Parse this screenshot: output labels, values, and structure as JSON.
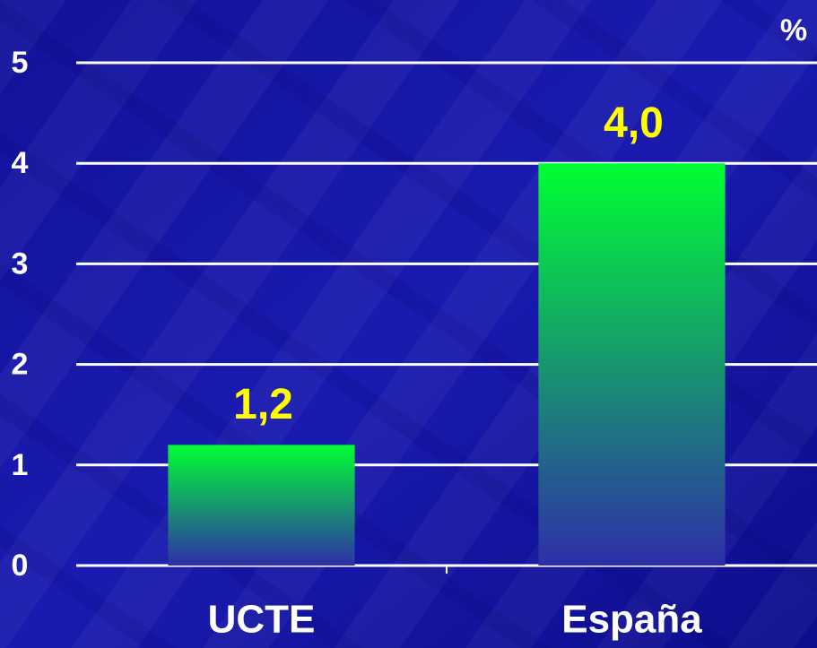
{
  "chart_data": {
    "type": "bar",
    "unit": "%",
    "categories": [
      "UCTE",
      "España"
    ],
    "values": [
      1.2,
      4.0
    ],
    "value_labels": [
      "1,2",
      "4,0"
    ],
    "colors": [
      "#00ff33",
      "#2e2ea8"
    ],
    "ylim": [
      0,
      5
    ],
    "yticks": [
      0,
      1,
      2,
      3,
      4,
      5
    ],
    "grid": true
  }
}
